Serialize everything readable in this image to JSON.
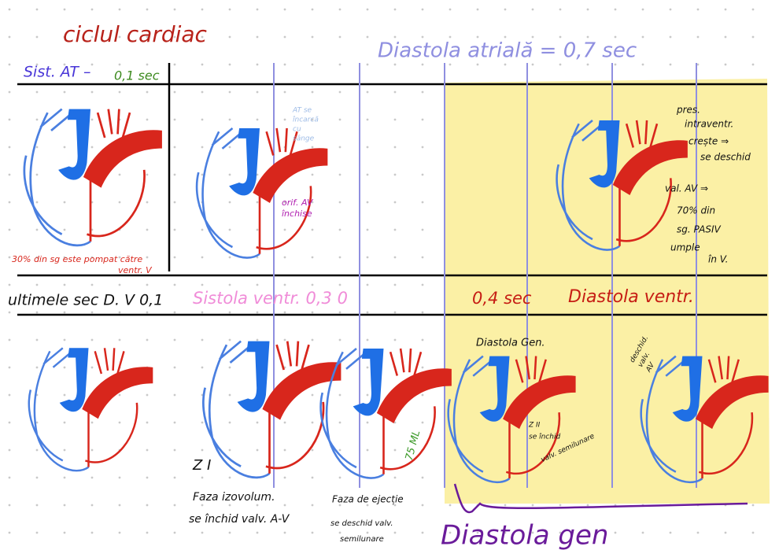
{
  "title": "ciclul cardiac",
  "header": {
    "atrial_systole": "Sist. AT –",
    "atrial_systole_duration": "0,1 sec",
    "atrial_diastole": "Diastola atrială = 0,7 sec"
  },
  "row1": {
    "pump_note": [
      "30% din sg este pompat către",
      "ventr. V"
    ],
    "filling_note": [
      "AT se",
      "încarcă",
      "cu",
      "sânge"
    ],
    "valves_note": [
      "orif. AV",
      "închise"
    ],
    "pressure_note": [
      "pres.",
      "intraventr.",
      "crește ⇒",
      "se deschid",
      "val. AV ⇒",
      "70% din",
      "sg. PASIV",
      "umple",
      "în V."
    ]
  },
  "row2_header": {
    "last_diastole": "ultimele sec D. V 0,1",
    "ventricular_systole": "Sistola ventr. 0,3 0",
    "ventricular_diastole_duration": "0,4 sec",
    "ventricular_diastole": "Diastola ventr."
  },
  "row2": {
    "general_diastole_label": "Diastola Gen.",
    "av_open_note": [
      "deschid.",
      "valv.",
      "AV"
    ],
    "first_sound": "Z I",
    "isovolumetric_note": [
      "Faza izovolum.",
      "se închid valv. A-V"
    ],
    "ejection_note": [
      "Faza de ejecție",
      "se deschid valv.",
      "semilunare"
    ],
    "stroke_volume": "75 ML",
    "second_sound_note": [
      "Z II",
      "se închid",
      "valv. semilunare"
    ]
  },
  "footer": "Diastola gen"
}
